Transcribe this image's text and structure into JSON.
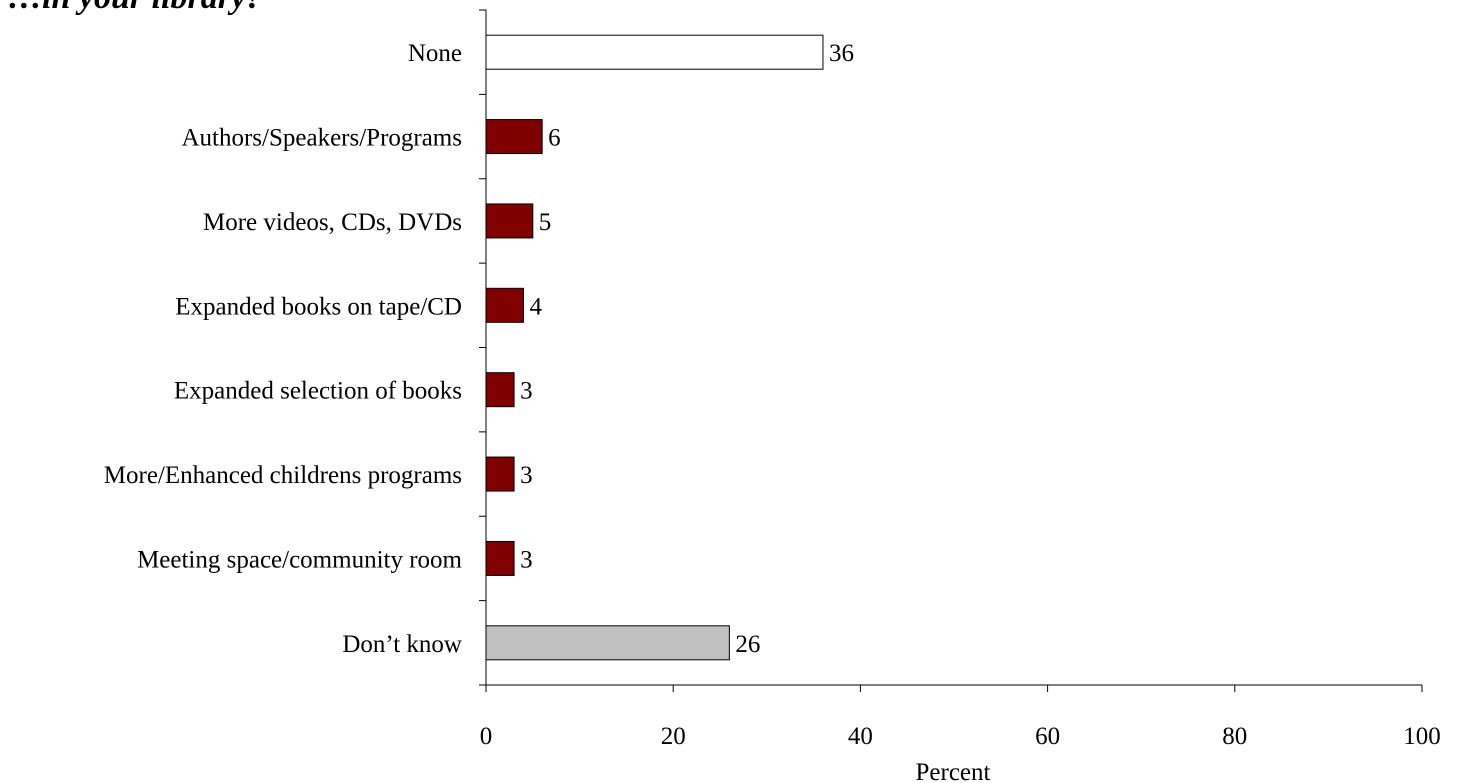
{
  "chart_data": {
    "type": "bar",
    "orientation": "horizontal",
    "title": "…in your library?",
    "categories": [
      "None",
      "Authors/Speakers/Programs",
      "More videos, CDs, DVDs",
      "Expanded books on tape/CD",
      "Expanded selection of books",
      "More/Enhanced childrens programs",
      "Meeting space/community room",
      "Don’t know"
    ],
    "values": [
      36,
      6,
      5,
      4,
      3,
      3,
      3,
      26
    ],
    "value_labels": [
      "36",
      "6",
      "5",
      "4",
      "3",
      "3",
      "3",
      "26"
    ],
    "bar_colors": [
      "#ffffff",
      "#800000",
      "#800000",
      "#800000",
      "#800000",
      "#800000",
      "#800000",
      "#c0c0c0"
    ],
    "xlabel": "Percent",
    "ylabel": "",
    "xlim": [
      0,
      100
    ],
    "xticks": [
      0,
      20,
      40,
      60,
      80,
      100
    ],
    "xtick_labels": [
      "0",
      "20",
      "40",
      "60",
      "80",
      "100"
    ],
    "grid": false,
    "legend": "none"
  }
}
